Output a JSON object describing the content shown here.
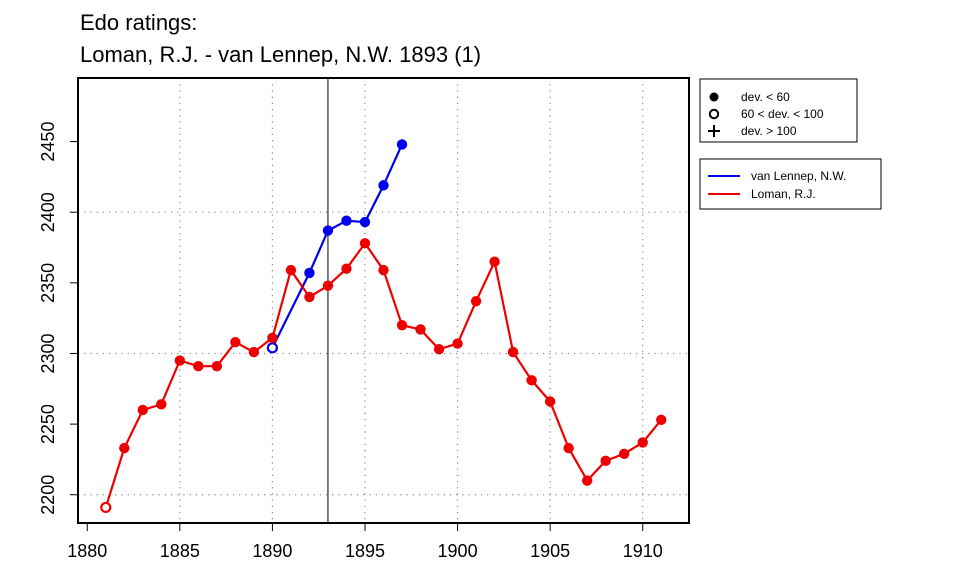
{
  "chart_data": {
    "type": "line",
    "title": "Edo ratings:",
    "subtitle": "Loman, R.J. - van Lennep, N.W. 1893 (1)",
    "xlabel": "",
    "ylabel": "",
    "xlim": [
      1879.5,
      1912.5
    ],
    "ylim": [
      2180,
      2495
    ],
    "x_ticks": [
      1880,
      1885,
      1890,
      1895,
      1900,
      1905,
      1910
    ],
    "y_ticks": [
      2200,
      2250,
      2300,
      2350,
      2400,
      2450
    ],
    "x_grid": [
      1885,
      1890,
      1895,
      1900,
      1905,
      1910
    ],
    "y_grid": [
      2200,
      2300,
      2400
    ],
    "grid": true,
    "vline": 1893,
    "deviation_legend": [
      {
        "symbol": "filled-circle",
        "label": "dev. < 60"
      },
      {
        "symbol": "open-circle",
        "label": "60 < dev. < 100"
      },
      {
        "symbol": "plus",
        "label": "dev. > 100"
      }
    ],
    "legend_position": "right",
    "series": [
      {
        "name": "van Lennep, N.W.",
        "color": "#0000ee",
        "x": [
          1890,
          1892,
          1893,
          1894,
          1895,
          1896,
          1897
        ],
        "y": [
          2304,
          2357,
          2387,
          2394,
          2393,
          2419,
          2448
        ],
        "markers": [
          "open",
          "filled",
          "filled",
          "filled",
          "filled",
          "filled",
          "filled"
        ]
      },
      {
        "name": "Loman, R.J.",
        "color": "#ee0000",
        "x": [
          1881,
          1882,
          1883,
          1884,
          1885,
          1886,
          1887,
          1888,
          1889,
          1890,
          1891,
          1892,
          1893,
          1894,
          1895,
          1896,
          1897,
          1898,
          1899,
          1900,
          1901,
          1902,
          1903,
          1904,
          1905,
          1906,
          1907,
          1908,
          1909,
          1910,
          1911
        ],
        "y": [
          2191,
          2233,
          2260,
          2264,
          2295,
          2291,
          2291,
          2308,
          2301,
          2311,
          2359,
          2340,
          2348,
          2360,
          2378,
          2359,
          2320,
          2317,
          2303,
          2307,
          2337,
          2365,
          2301,
          2281,
          2266,
          2233,
          2210,
          2224,
          2229,
          2237,
          2253
        ],
        "markers": [
          "open",
          "filled",
          "filled",
          "filled",
          "filled",
          "filled",
          "filled",
          "filled",
          "filled",
          "filled",
          "filled",
          "filled",
          "filled",
          "filled",
          "filled",
          "filled",
          "filled",
          "filled",
          "filled",
          "filled",
          "filled",
          "filled",
          "filled",
          "filled",
          "filled",
          "filled",
          "filled",
          "filled",
          "filled",
          "filled",
          "filled"
        ]
      }
    ]
  }
}
